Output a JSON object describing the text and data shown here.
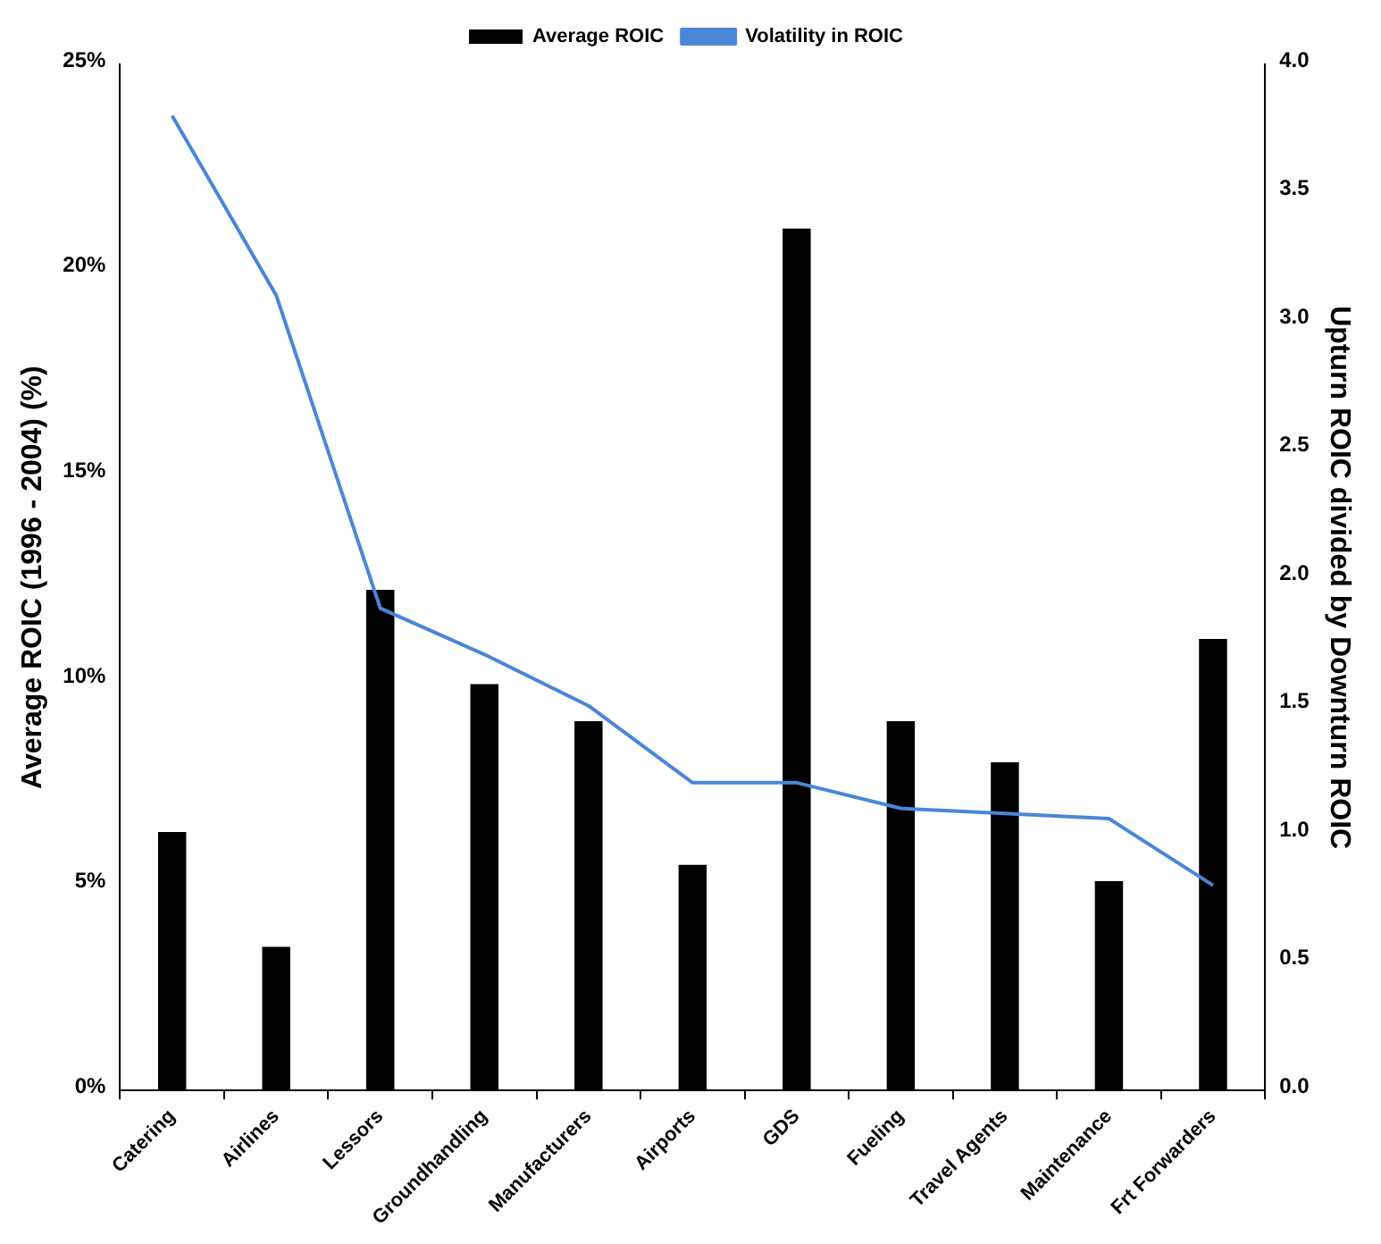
{
  "chart_data": {
    "type": "bar",
    "categories": [
      "Catering",
      "Airlines",
      "Lessors",
      "Groundhandling",
      "Manufacturers",
      "Airports",
      "GDS",
      "Fueling",
      "Travel Agents",
      "Maintenance",
      "Frt Forwarders"
    ],
    "series": [
      {
        "name": "Average ROIC",
        "color": "#000000",
        "values": [
          6.3,
          3.5,
          12.2,
          9.9,
          9.0,
          5.5,
          21.0,
          9.0,
          8.0,
          5.1,
          11.0
        ]
      },
      {
        "name": "Volatility in ROIC",
        "type": "line",
        "axis": "y2",
        "color": "#4a86d8",
        "values": [
          3.8,
          3.1,
          1.88,
          1.7,
          1.5,
          1.2,
          1.2,
          1.1,
          1.08,
          1.06,
          0.8
        ]
      }
    ],
    "ylabel": "Average ROIC (1996 - 2004) (%)",
    "y2label": "Upturn ROIC divided by Downturn ROIC",
    "ylim": [
      0,
      25
    ],
    "yticks": [
      {
        "value": 0,
        "label": "0%"
      },
      {
        "value": 5,
        "label": "5%"
      },
      {
        "value": 10,
        "label": "10%"
      },
      {
        "value": 15,
        "label": "15%"
      },
      {
        "value": 20,
        "label": "20%"
      },
      {
        "value": 25,
        "label": "25%"
      }
    ],
    "y2lim": [
      0,
      4
    ],
    "y2ticks": [
      {
        "value": 0,
        "label": "0.0"
      },
      {
        "value": 0.5,
        "label": "0.5"
      },
      {
        "value": 1,
        "label": "1.0"
      },
      {
        "value": 1.5,
        "label": "1.5"
      },
      {
        "value": 2,
        "label": "2.0"
      },
      {
        "value": 2.5,
        "label": "2.5"
      },
      {
        "value": 3,
        "label": "3.0"
      },
      {
        "value": 3.5,
        "label": "3.5"
      },
      {
        "value": 4,
        "label": "4.0"
      }
    ],
    "grid": false,
    "legend": "top",
    "marker": "none"
  }
}
